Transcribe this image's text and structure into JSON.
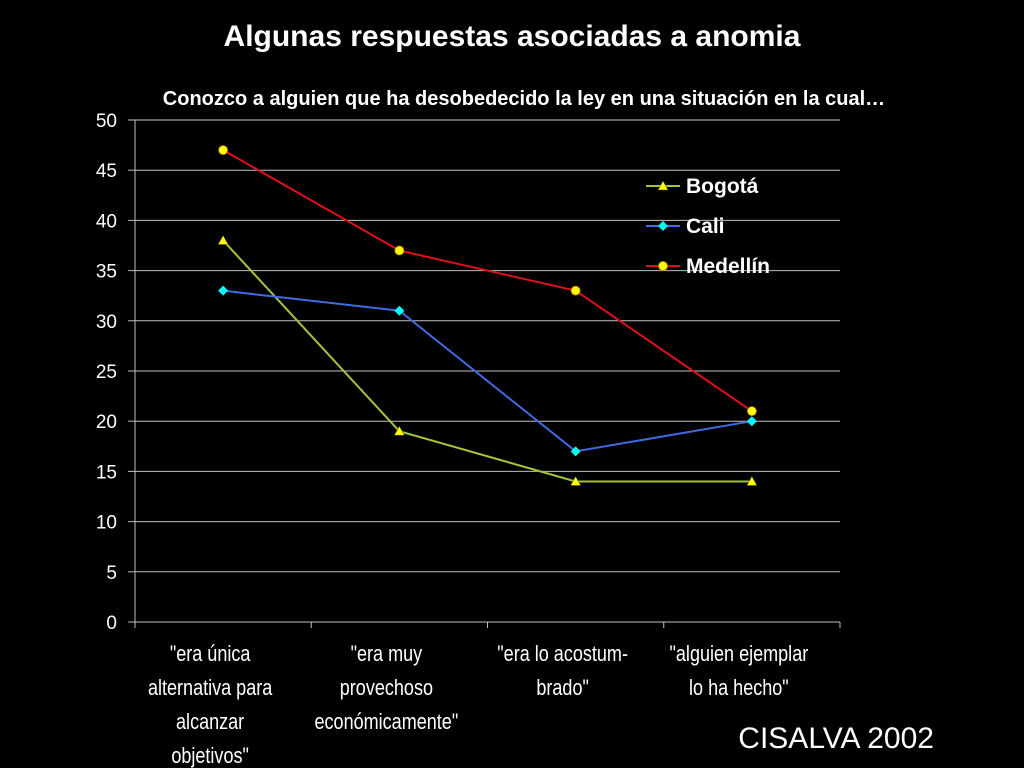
{
  "header": {
    "title": "Algunas respuestas asociadas a anomia",
    "subtitle": "Conozco a alguien que ha desobedecido la ley en una situación en la cual…"
  },
  "footer": {
    "source": "CISALVA 2002"
  },
  "colors": {
    "background": "#000000",
    "grid": "#bfbfbf",
    "bogota": "#a4c43a",
    "cali": "#4169e1",
    "medellin": "#e0101a",
    "marker_yellow": "#ffff00",
    "marker_cyan": "#00ffff"
  },
  "chart_data": {
    "type": "line",
    "categories": [
      [
        "\"era única",
        "alternativa para",
        "alcanzar",
        "objetivos\""
      ],
      [
        "\"era muy",
        "provechoso",
        "económicamente\""
      ],
      [
        "\"era lo acostum-",
        "brado\""
      ],
      [
        "\"alguien ejemplar",
        "lo ha hecho\""
      ]
    ],
    "series": [
      {
        "name": "Bogotá",
        "values": [
          38,
          19,
          14,
          14
        ],
        "color": "#a4c43a",
        "marker": "triangle",
        "marker_color": "#ffff00"
      },
      {
        "name": "Cali",
        "values": [
          33,
          31,
          17,
          20
        ],
        "color": "#4169e1",
        "marker": "diamond",
        "marker_color": "#00ffff"
      },
      {
        "name": "Medellín",
        "values": [
          47,
          37,
          33,
          21
        ],
        "color": "#e0101a",
        "marker": "circle",
        "marker_color": "#ffff00"
      }
    ],
    "ylim": [
      0,
      50
    ],
    "yticks": [
      0,
      5,
      10,
      15,
      20,
      25,
      30,
      35,
      40,
      45,
      50
    ],
    "grid": true,
    "legend": "top-right"
  }
}
